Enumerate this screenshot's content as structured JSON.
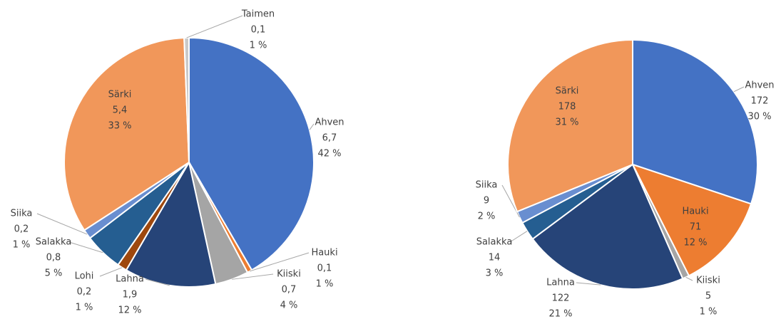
{
  "chart_data": [
    {
      "type": "pie",
      "categories": [
        "Ahven",
        "Hauki",
        "Kiiski",
        "Lahna",
        "Lohi",
        "Salakka",
        "Siika",
        "Särki",
        "Taimen"
      ],
      "values": [
        6.7,
        0.1,
        0.7,
        1.9,
        0.2,
        0.8,
        0.2,
        5.4,
        0.1
      ],
      "value_labels": [
        "6,7",
        "0,1",
        "0,7",
        "1,9",
        "0,2",
        "0,8",
        "0,2",
        "5,4",
        "0,1"
      ],
      "percents": [
        42,
        1,
        4,
        12,
        1,
        5,
        1,
        33,
        1
      ],
      "percent_labels": [
        "42 %",
        "1 %",
        "4 %",
        "12 %",
        "1 %",
        "5 %",
        "1 %",
        "33 %",
        "1 %"
      ],
      "colors": [
        "#4472c4",
        "#ed7d31",
        "#a5a5a5",
        "#264478",
        "#9e480e",
        "#255e91",
        "#698ed0",
        "#f1975a",
        "#c9c9c9"
      ]
    },
    {
      "type": "pie",
      "categories": [
        "Ahven",
        "Hauki",
        "Kiiski",
        "Lahna",
        "Salakka",
        "Siika",
        "Särki"
      ],
      "values": [
        172,
        71,
        5,
        122,
        14,
        9,
        178
      ],
      "percents": [
        30,
        12,
        1,
        21,
        3,
        2,
        31
      ],
      "percent_labels": [
        "30 %",
        "12 %",
        "1 %",
        "21 %",
        "3 %",
        "2 %",
        "31 %"
      ],
      "colors": [
        "#4472c4",
        "#ed7d31",
        "#a5a5a5",
        "#264478",
        "#255e91",
        "#698ed0",
        "#f1975a"
      ]
    }
  ]
}
